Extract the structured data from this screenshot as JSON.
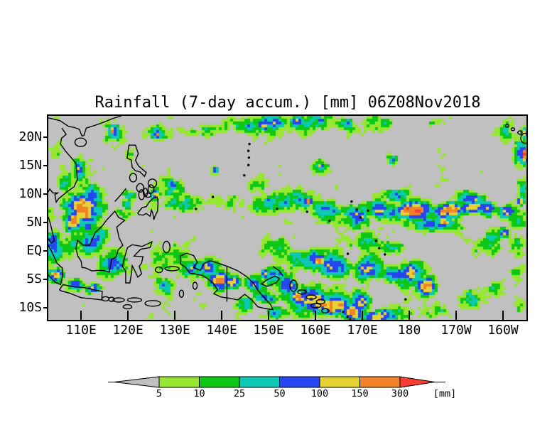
{
  "title": "Rainfall (7-day accum.) [mm] 06Z08Nov2018",
  "chart_data": {
    "type": "heatmap",
    "title": "Rainfall (7-day accum.) [mm] 06Z08Nov2018",
    "variable": "Rainfall (7-day accum.)",
    "units": "mm",
    "valid_time": "06Z08Nov2018",
    "lon_range": [
      103,
      205
    ],
    "lat_range": [
      -12.1,
      23.75
    ],
    "background_color": "#c0c0c0",
    "lat_ticks": [
      {
        "label": "20N",
        "lat": 20
      },
      {
        "label": "15N",
        "lat": 15
      },
      {
        "label": "10N",
        "lat": 10
      },
      {
        "label": "5N",
        "lat": 5
      },
      {
        "label": "EQ",
        "lat": 0
      },
      {
        "label": "5S",
        "lat": -5
      },
      {
        "label": "10S",
        "lat": -10
      }
    ],
    "lon_ticks": [
      {
        "label": "110E",
        "lon": 110
      },
      {
        "label": "120E",
        "lon": 120
      },
      {
        "label": "130E",
        "lon": 130
      },
      {
        "label": "140E",
        "lon": 140
      },
      {
        "label": "150E",
        "lon": 150
      },
      {
        "label": "160E",
        "lon": 160
      },
      {
        "label": "170E",
        "lon": 170
      },
      {
        "label": "180",
        "lon": 180
      },
      {
        "label": "170W",
        "lon": 190
      },
      {
        "label": "160W",
        "lon": 200
      }
    ],
    "colorbar": {
      "tick_labels": [
        "5",
        "10",
        "25",
        "50",
        "100",
        "150",
        "300"
      ],
      "units_label": "[mm]",
      "below_color": "#c0c0c0",
      "bin_colors": [
        "#96e632",
        "#0cc814",
        "#0cc8b4",
        "#2846f0",
        "#e6d232",
        "#f08228"
      ],
      "above_color": "#fa3c32"
    },
    "palette": [
      "#c0c0c0",
      "#96e632",
      "#0cc814",
      "#0cc8b4",
      "#2846f0",
      "#e6d232",
      "#f08228",
      "#fa3c32"
    ],
    "features": [
      [
        110.4,
        7.3,
        4.6,
        3.6,
        5.9
      ],
      [
        108.3,
        5.4,
        2.6,
        2.0,
        7.1
      ],
      [
        112.5,
        10.2,
        3.0,
        2.2,
        4.6
      ],
      [
        109.5,
        14.5,
        1.6,
        2.6,
        4.0
      ],
      [
        106.2,
        12.5,
        2.0,
        2.5,
        3.2
      ],
      [
        105.0,
        17.8,
        1.8,
        2.2,
        2.9
      ],
      [
        103.5,
        6.5,
        1.5,
        2.5,
        3.6
      ],
      [
        104.0,
        1.0,
        2.6,
        3.4,
        4.2
      ],
      [
        104.6,
        -4.4,
        1.8,
        1.6,
        5.7
      ],
      [
        108.8,
        -5.9,
        2.4,
        1.2,
        5.5
      ],
      [
        112.6,
        -6.6,
        2.0,
        1.0,
        5.1
      ],
      [
        112.0,
        1.8,
        4.6,
        3.4,
        4.3
      ],
      [
        117.0,
        -1.6,
        4.0,
        3.0,
        4.1
      ],
      [
        111.5,
        4.1,
        1.2,
        1.0,
        5.4
      ],
      [
        119.5,
        6.8,
        3.0,
        2.0,
        3.3
      ],
      [
        117.0,
        21.2,
        1.8,
        1.6,
        4.8
      ],
      [
        116.8,
        21.2,
        1.0,
        0.9,
        6.2
      ],
      [
        117.0,
        21.0,
        2.6,
        2.2,
        3.4
      ],
      [
        126.0,
        21.0,
        2.1,
        1.8,
        3.5
      ],
      [
        126.3,
        20.6,
        0.8,
        0.8,
        5.7
      ],
      [
        120.5,
        17.3,
        1.5,
        1.5,
        2.7
      ],
      [
        130.0,
        11.2,
        4.0,
        2.6,
        3.1
      ],
      [
        129.5,
        11.7,
        2.2,
        1.2,
        4.6
      ],
      [
        126.0,
        10.0,
        1.2,
        1.0,
        5.6
      ],
      [
        119.8,
        8.2,
        1.5,
        1.2,
        5.3
      ],
      [
        120.5,
        9.5,
        2.0,
        1.5,
        4.4
      ],
      [
        138.8,
        14.3,
        0.8,
        0.7,
        5.4
      ],
      [
        147.0,
        11.5,
        3.0,
        1.6,
        2.7
      ],
      [
        133.0,
        8.3,
        6.0,
        2.2,
        3.0
      ],
      [
        141.0,
        8.7,
        6.0,
        2.2,
        3.1
      ],
      [
        149.0,
        7.8,
        5.0,
        2.2,
        3.7
      ],
      [
        155.0,
        8.8,
        5.0,
        2.2,
        4.0
      ],
      [
        158.5,
        8.8,
        1.1,
        0.9,
        5.9
      ],
      [
        161.0,
        15.0,
        1.8,
        1.5,
        4.4
      ],
      [
        161.0,
        15.0,
        0.9,
        0.8,
        5.9
      ],
      [
        176.5,
        16.0,
        1.3,
        0.9,
        3.8
      ],
      [
        163.0,
        7.5,
        4.0,
        2.3,
        4.5
      ],
      [
        169.0,
        6.5,
        4.0,
        2.5,
        4.6
      ],
      [
        175.0,
        7.0,
        4.0,
        2.2,
        4.9
      ],
      [
        177.0,
        9.8,
        4.0,
        1.5,
        4.1
      ],
      [
        181.0,
        7.2,
        5.0,
        1.7,
        6.2
      ],
      [
        188.0,
        7.2,
        4.0,
        1.6,
        6.5
      ],
      [
        189.0,
        7.3,
        1.0,
        0.8,
        7.2
      ],
      [
        187.5,
        5.0,
        2.0,
        1.2,
        5.4
      ],
      [
        193.0,
        9.3,
        4.0,
        1.1,
        5.1
      ],
      [
        194.0,
        7.6,
        3.5,
        1.5,
        5.9
      ],
      [
        196.5,
        7.4,
        3.0,
        1.6,
        6.0
      ],
      [
        201.0,
        7.0,
        2.5,
        1.5,
        5.5
      ],
      [
        203.8,
        8.8,
        1.0,
        1.0,
        5.3
      ],
      [
        204.0,
        11.0,
        1.5,
        2.0,
        4.5
      ],
      [
        185.0,
        4.5,
        6.0,
        1.6,
        4.2
      ],
      [
        192.0,
        10.0,
        3.0,
        1.3,
        3.3
      ],
      [
        200.5,
        3.2,
        1.2,
        1.0,
        5.5
      ],
      [
        203.0,
        5.5,
        2.5,
        2.0,
        3.2
      ],
      [
        197.0,
        1.5,
        4.0,
        2.5,
        2.6
      ],
      [
        203.0,
        0.0,
        2.5,
        3.0,
        3.1
      ],
      [
        139.0,
        21.5,
        5.0,
        1.8,
        3.4
      ],
      [
        146.0,
        21.8,
        4.0,
        1.6,
        3.8
      ],
      [
        149.0,
        22.0,
        1.5,
        1.0,
        4.8
      ],
      [
        152.0,
        22.5,
        5.0,
        1.8,
        3.3
      ],
      [
        156.0,
        22.8,
        2.0,
        1.3,
        4.8
      ],
      [
        160.5,
        22.3,
        4.0,
        1.8,
        3.7
      ],
      [
        161.0,
        22.9,
        1.0,
        0.8,
        5.4
      ],
      [
        166.0,
        22.3,
        3.0,
        1.5,
        4.2
      ],
      [
        167.0,
        22.8,
        1.0,
        0.8,
        5.3
      ],
      [
        133.0,
        20.8,
        3.0,
        1.5,
        3.0
      ],
      [
        172.0,
        22.5,
        3.0,
        1.5,
        3.1
      ],
      [
        175.0,
        22.5,
        2.0,
        1.2,
        4.7
      ],
      [
        185.0,
        22.5,
        3.0,
        1.3,
        2.9
      ],
      [
        200.5,
        20.8,
        2.5,
        1.8,
        2.5
      ],
      [
        204.8,
        20.8,
        1.0,
        1.2,
        5.6
      ],
      [
        203.5,
        18.8,
        2.0,
        1.5,
        2.3
      ],
      [
        204.8,
        17.0,
        1.2,
        2.0,
        5.8
      ],
      [
        204.0,
        17.5,
        2.0,
        3.0,
        3.2
      ],
      [
        130.0,
        -1.0,
        4.5,
        3.0,
        3.4
      ],
      [
        134.0,
        -2.6,
        4.0,
        2.5,
        3.9
      ],
      [
        127.0,
        -6.0,
        3.0,
        2.0,
        3.3
      ],
      [
        133.5,
        -3.2,
        1.0,
        1.0,
        5.2
      ],
      [
        137.0,
        -2.5,
        3.0,
        2.0,
        4.4
      ],
      [
        139.5,
        -5.0,
        2.3,
        1.8,
        5.8
      ],
      [
        142.5,
        -5.5,
        2.0,
        1.5,
        5.5
      ],
      [
        147.0,
        -5.5,
        3.0,
        2.0,
        4.4
      ],
      [
        149.3,
        -4.0,
        1.2,
        1.0,
        5.5
      ],
      [
        151.0,
        -4.5,
        3.0,
        2.2,
        4.3
      ],
      [
        152.0,
        0.5,
        5.0,
        2.5,
        3.3
      ],
      [
        158.0,
        -1.5,
        5.0,
        2.5,
        4.8
      ],
      [
        160.5,
        -1.5,
        2.0,
        1.5,
        5.4
      ],
      [
        164.0,
        -2.5,
        4.0,
        2.5,
        4.4
      ],
      [
        171.0,
        -3.0,
        3.5,
        2.5,
        4.4
      ],
      [
        176.5,
        0.5,
        4.0,
        1.5,
        3.3
      ],
      [
        171.0,
        1.5,
        4.0,
        2.0,
        3.0
      ],
      [
        154.0,
        -6.0,
        3.0,
        2.5,
        4.8
      ],
      [
        149.0,
        -8.0,
        3.0,
        2.0,
        4.3
      ],
      [
        145.0,
        -9.3,
        3.0,
        1.6,
        4.9
      ],
      [
        159.0,
        -8.5,
        5.0,
        3.0,
        6.1
      ],
      [
        156.5,
        -8.0,
        2.0,
        1.5,
        7.1
      ],
      [
        164.0,
        -9.5,
        4.0,
        2.5,
        5.9
      ],
      [
        168.0,
        -11.0,
        4.0,
        2.0,
        5.6
      ],
      [
        170.0,
        -9.0,
        3.0,
        2.0,
        5.1
      ],
      [
        174.0,
        -11.5,
        5.0,
        1.5,
        5.7
      ],
      [
        183.8,
        -6.2,
        2.7,
        2.2,
        6.6
      ],
      [
        183.5,
        -5.8,
        1.1,
        1.0,
        7.3
      ],
      [
        181.0,
        -4.0,
        4.0,
        2.5,
        4.6
      ],
      [
        177.0,
        -4.5,
        3.0,
        2.0,
        4.0
      ],
      [
        179.0,
        -5.5,
        3.0,
        1.5,
        3.1
      ],
      [
        173.0,
        -3.5,
        1.5,
        2.5,
        2.9
      ],
      [
        186.0,
        -10.5,
        4.0,
        2.0,
        2.8
      ],
      [
        193.0,
        -8.5,
        4.0,
        2.5,
        2.9
      ],
      [
        199.0,
        -7.0,
        3.0,
        2.0,
        2.7
      ],
      [
        203.0,
        -9.0,
        2.0,
        2.0,
        3.1
      ],
      [
        203.5,
        -4.0,
        2.0,
        2.5,
        3.0
      ],
      [
        152.0,
        -11.0,
        3.0,
        1.5,
        3.4
      ]
    ]
  }
}
